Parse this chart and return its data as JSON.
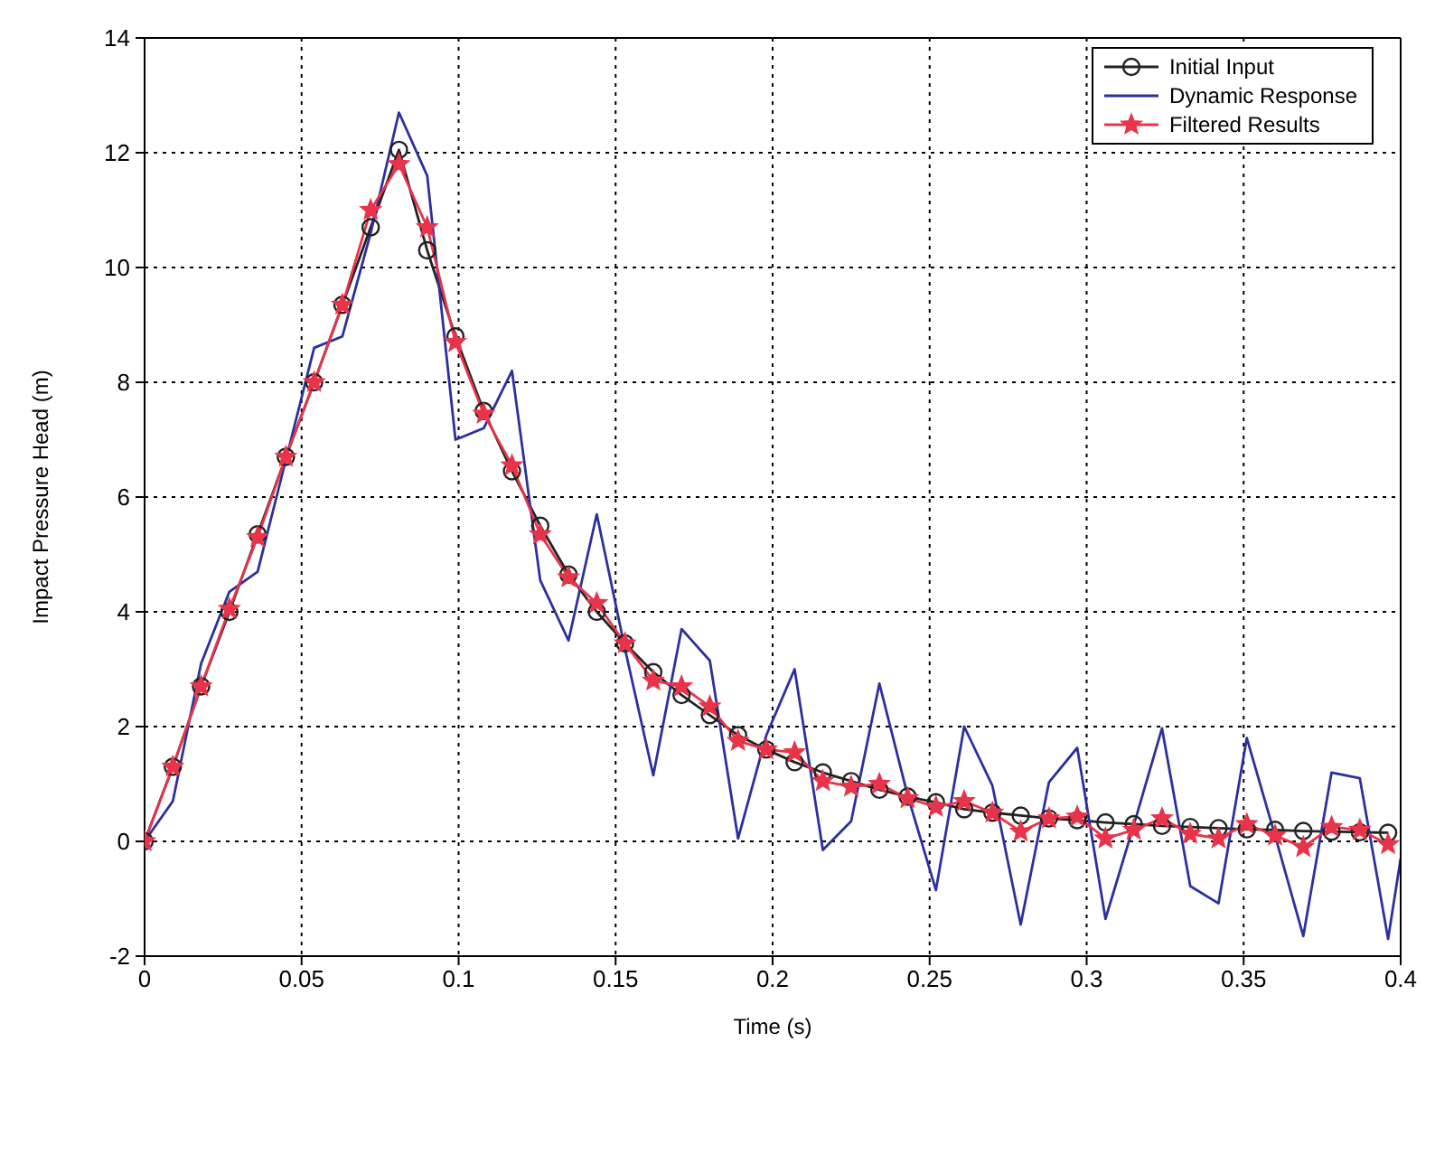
{
  "chart_data": {
    "type": "line",
    "xlabel": "Time (s)",
    "ylabel": "Impact Pressure Head (m)",
    "xlim": [
      0,
      0.4
    ],
    "xticks": [
      0,
      0.05,
      0.1,
      0.15,
      0.2,
      0.25,
      0.3,
      0.35,
      0.4
    ],
    "ylim": [
      -2,
      14
    ],
    "yticks": [
      -2,
      0,
      2,
      4,
      6,
      8,
      10,
      12,
      14
    ],
    "grid": true,
    "legend": "top right",
    "line_style": "solid",
    "x": [
      0,
      0.009,
      0.018,
      0.027,
      0.036,
      0.045,
      0.054,
      0.063,
      0.072,
      0.081,
      0.09,
      0.099,
      0.108,
      0.117,
      0.126,
      0.135,
      0.144,
      0.153,
      0.162,
      0.171,
      0.18,
      0.189,
      0.198,
      0.207,
      0.216,
      0.225,
      0.234,
      0.243,
      0.252,
      0.261,
      0.27,
      0.279,
      0.288,
      0.297,
      0.306,
      0.315,
      0.324,
      0.333,
      0.342,
      0.351,
      0.36,
      0.369,
      0.378,
      0.387,
      0.396
    ],
    "series": [
      {
        "name": "Initial Input",
        "color": "#222222",
        "marker": "circle",
        "values": [
          0,
          1.3,
          2.7,
          4.0,
          5.35,
          6.7,
          8.0,
          9.35,
          10.7,
          12.05,
          10.3,
          8.8,
          7.5,
          6.45,
          5.5,
          4.65,
          4.0,
          3.45,
          2.95,
          2.55,
          2.2,
          1.85,
          1.6,
          1.38,
          1.2,
          1.05,
          0.9,
          0.78,
          0.68,
          0.56,
          0.5,
          0.45,
          0.4,
          0.37,
          0.33,
          0.3,
          0.27,
          0.25,
          0.23,
          0.21,
          0.2,
          0.18,
          0.17,
          0.16,
          0.15
        ]
      },
      {
        "name": "Dynamic Response",
        "color": "#2b309e",
        "marker": "none",
        "x": [
          0,
          0.009,
          0.018,
          0.027,
          0.036,
          0.045,
          0.054,
          0.063,
          0.072,
          0.081,
          0.09,
          0.099,
          0.108,
          0.117,
          0.126,
          0.135,
          0.144,
          0.153,
          0.162,
          0.171,
          0.18,
          0.189,
          0.198,
          0.207,
          0.216,
          0.225,
          0.234,
          0.243,
          0.252,
          0.261,
          0.27,
          0.279,
          0.288,
          0.297,
          0.306,
          0.315,
          0.324,
          0.333,
          0.342,
          0.351,
          0.36,
          0.369,
          0.378,
          0.387,
          0.396,
          0.4
        ],
        "values": [
          0,
          0.7,
          3.1,
          4.35,
          4.7,
          6.65,
          8.6,
          8.8,
          10.6,
          12.7,
          11.6,
          7.0,
          7.2,
          8.2,
          4.55,
          3.5,
          5.7,
          3.35,
          1.15,
          3.7,
          3.15,
          0.05,
          1.85,
          3.0,
          -0.15,
          0.35,
          2.75,
          0.8,
          -0.85,
          2.0,
          0.97,
          -1.45,
          1.03,
          1.63,
          -1.35,
          0.28,
          1.97,
          -0.78,
          -1.08,
          1.8,
          0.1,
          -1.65,
          1.2,
          1.1,
          -1.7,
          -0.3
        ]
      },
      {
        "name": "Filtered Results",
        "color": "#e8344a",
        "marker": "star",
        "values": [
          0,
          1.3,
          2.7,
          4.05,
          5.3,
          6.7,
          8.0,
          9.35,
          11.0,
          11.8,
          10.7,
          8.7,
          7.45,
          6.55,
          5.35,
          4.6,
          4.15,
          3.45,
          2.8,
          2.7,
          2.35,
          1.75,
          1.6,
          1.55,
          1.05,
          0.95,
          1.0,
          0.75,
          0.6,
          0.7,
          0.5,
          0.17,
          0.4,
          0.43,
          0.05,
          0.2,
          0.4,
          0.13,
          0.05,
          0.3,
          0.1,
          -0.1,
          0.25,
          0.2,
          -0.05
        ]
      }
    ]
  }
}
